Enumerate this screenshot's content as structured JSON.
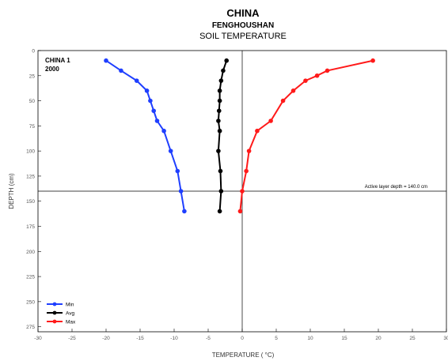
{
  "header": {
    "title": "CHINA",
    "subtitle": "FENGHOUSHAN",
    "subtitle2": "SOIL TEMPERATURE"
  },
  "chart_data": {
    "type": "line",
    "title": "CHINA",
    "subtitle": "FENGHOUSHAN SOIL TEMPERATURE",
    "xlabel": "TEMPERATURE ( °C)",
    "ylabel": "DEPTH (cm)",
    "xlim": [
      -30,
      30
    ],
    "ylim": [
      0,
      280
    ],
    "y_inverted": true,
    "x_ticks": [
      -30,
      -25,
      -20,
      -15,
      -10,
      -5,
      0,
      5,
      10,
      15,
      20,
      25,
      30
    ],
    "y_ticks": [
      0,
      25,
      50,
      75,
      100,
      125,
      150,
      175,
      200,
      225,
      250,
      275
    ],
    "grid": false,
    "legend_position": "bottom-left",
    "site_label": "CHINA 1",
    "year_label": "2000",
    "active_layer_label": "Active layer depth = 140.0 cm",
    "active_layer_depth": 140,
    "series": [
      {
        "name": "Min",
        "color": "#1f3fff",
        "points": [
          [
            -20.0,
            10
          ],
          [
            -17.8,
            20
          ],
          [
            -15.5,
            30
          ],
          [
            -14.0,
            40
          ],
          [
            -13.5,
            50
          ],
          [
            -13.0,
            60
          ],
          [
            -12.5,
            70
          ],
          [
            -11.5,
            80
          ],
          [
            -10.5,
            100
          ],
          [
            -9.5,
            120
          ],
          [
            -9.0,
            140
          ],
          [
            -8.5,
            160
          ]
        ]
      },
      {
        "name": "Avg",
        "color": "#000000",
        "points": [
          [
            -2.3,
            10
          ],
          [
            -2.8,
            20
          ],
          [
            -3.1,
            30
          ],
          [
            -3.3,
            40
          ],
          [
            -3.3,
            50
          ],
          [
            -3.4,
            60
          ],
          [
            -3.5,
            70
          ],
          [
            -3.3,
            80
          ],
          [
            -3.5,
            100
          ],
          [
            -3.2,
            120
          ],
          [
            -3.1,
            140
          ],
          [
            -3.3,
            160
          ]
        ]
      },
      {
        "name": "Max",
        "color": "#ff1a1a",
        "points": [
          [
            19.2,
            10
          ],
          [
            12.5,
            20
          ],
          [
            11.0,
            25
          ],
          [
            9.3,
            30
          ],
          [
            7.5,
            40
          ],
          [
            6.0,
            50
          ],
          [
            4.2,
            70
          ],
          [
            2.2,
            80
          ],
          [
            1.0,
            100
          ],
          [
            0.6,
            120
          ],
          [
            0.0,
            140
          ],
          [
            -0.3,
            160
          ]
        ]
      }
    ]
  }
}
